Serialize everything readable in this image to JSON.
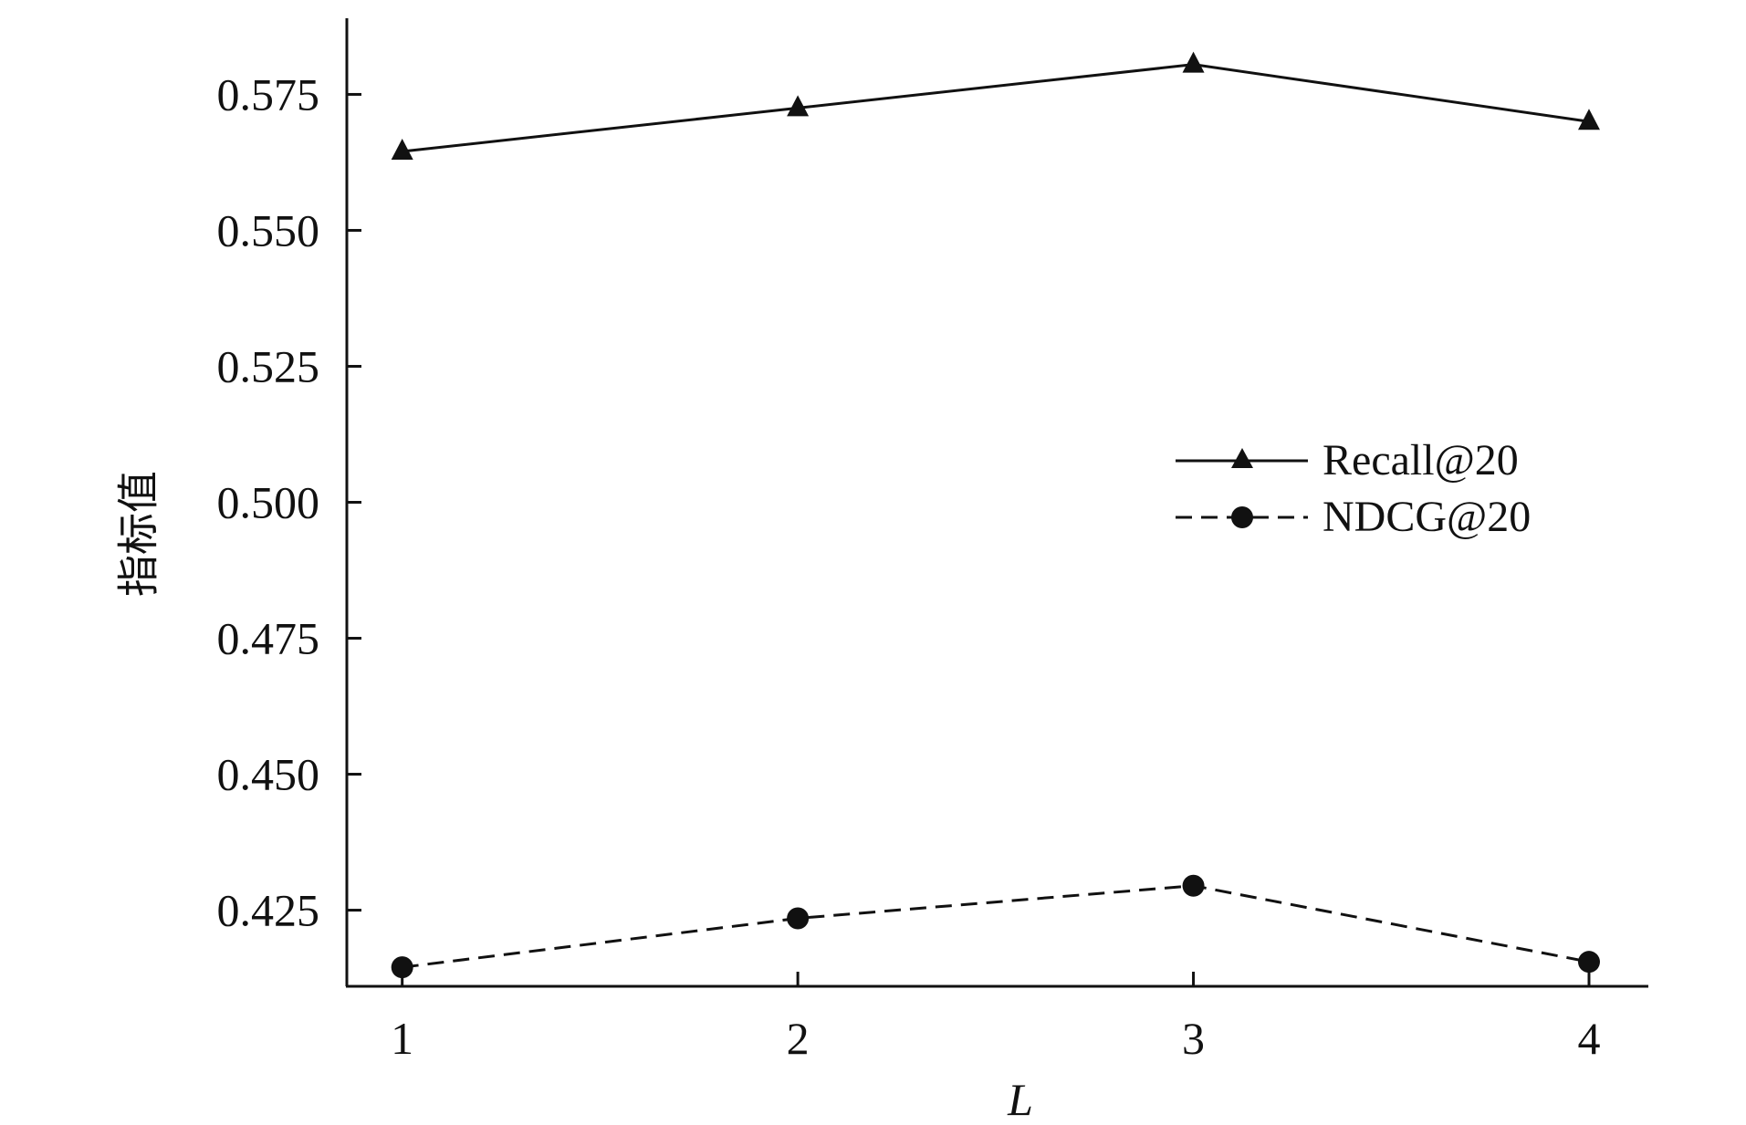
{
  "chart_data": {
    "type": "line",
    "title": "",
    "xlabel": "L",
    "ylabel": "指标值",
    "x": [
      1,
      2,
      3,
      4
    ],
    "xticks": [
      "1",
      "2",
      "3",
      "4"
    ],
    "yticks": [
      "0.425",
      "0.450",
      "0.475",
      "0.500",
      "0.525",
      "0.550",
      "0.575"
    ],
    "ylim": [
      0.411,
      0.589
    ],
    "xlim": [
      0.86,
      4.15
    ],
    "grid": false,
    "legend_position": "right",
    "series": [
      {
        "name": "Recall@20",
        "values": [
          0.5645,
          0.5725,
          0.5805,
          0.57
        ],
        "marker": "triangle",
        "line_style": "solid",
        "color": "#111111"
      },
      {
        "name": "NDCG@20",
        "values": [
          0.4145,
          0.4235,
          0.4295,
          0.4155
        ],
        "marker": "circle",
        "line_style": "dashed",
        "color": "#111111"
      }
    ]
  }
}
